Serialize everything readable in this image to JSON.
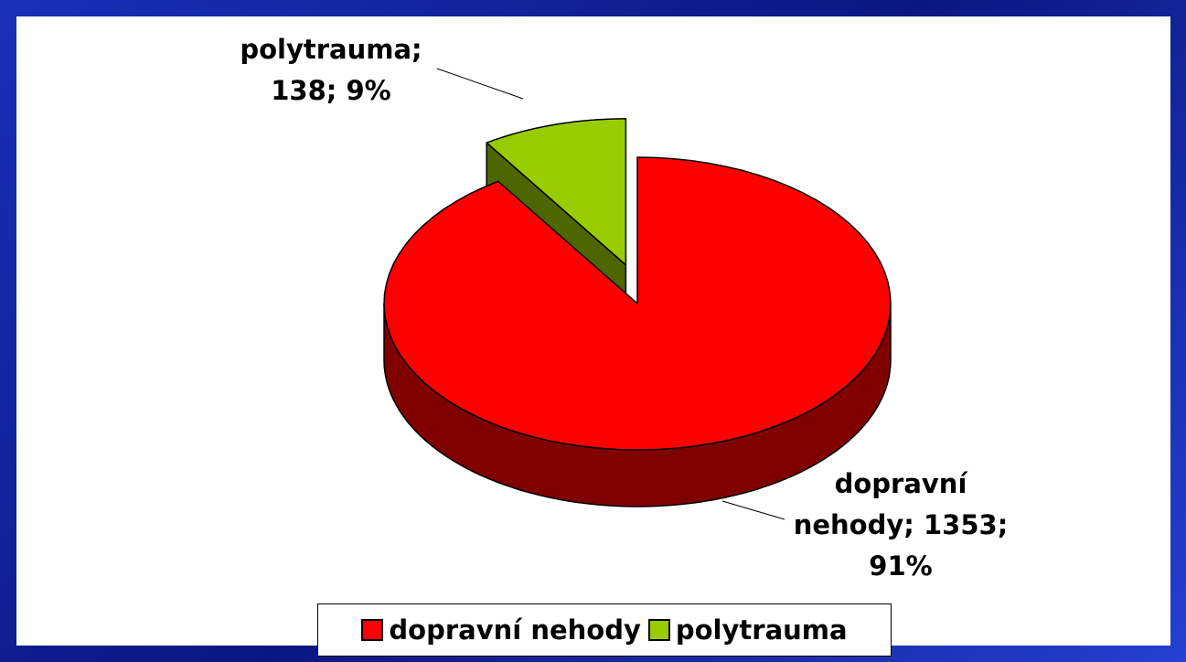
{
  "chart_data": {
    "type": "pie",
    "view": "3d",
    "categories": [
      "dopravní nehody",
      "polytrauma"
    ],
    "values": [
      1353,
      138
    ],
    "percent_labels": [
      "91%",
      "9%"
    ],
    "label_separator": ";",
    "colors": [
      "#ff0000",
      "#99cc00"
    ],
    "side_colors": [
      "#800000",
      "#4d6600"
    ],
    "exploded": [
      false,
      true
    ],
    "legend": "bottom"
  }
}
